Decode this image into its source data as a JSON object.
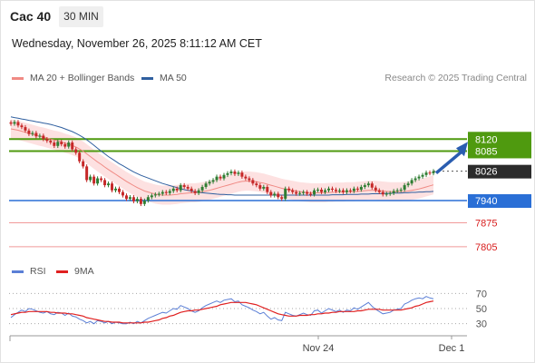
{
  "header": {
    "instrument": "Cac 40",
    "timeframe": "30 MIN"
  },
  "datetime": "Wednesday, November 26, 2025 8:11:12 AM CET",
  "legend": {
    "ma20": {
      "label": "MA 20 + Bollinger Bands",
      "color": "#f08a84"
    },
    "ma50": {
      "label": "MA 50",
      "color": "#2f5f9f"
    }
  },
  "credit": "Research © 2025 Trading Central",
  "rsi_legend": {
    "rsi": {
      "label": "RSI",
      "color": "#5b7fd6"
    },
    "ma9": {
      "label": "9MA",
      "color": "#e02020"
    }
  },
  "chart_data": [
    {
      "type": "candlestick",
      "title": "Cac 40",
      "ylim": [
        7770,
        8235
      ],
      "x_ticks": [
        "Nov 24",
        "Dec 1"
      ],
      "levels": [
        {
          "label": "8120",
          "value": 8120,
          "style": "resistance"
        },
        {
          "label": "8085",
          "value": 8085,
          "style": "resistance"
        },
        {
          "label": "8026",
          "value": 8026,
          "style": "last-price"
        },
        {
          "label": "7940",
          "value": 7940,
          "style": "pivot"
        },
        {
          "label": "7875",
          "value": 7875,
          "style": "support"
        },
        {
          "label": "7805",
          "value": 7805,
          "style": "support"
        }
      ],
      "closes": [
        8165,
        8170,
        8160,
        8155,
        8145,
        8135,
        8138,
        8128,
        8130,
        8120,
        8115,
        8110,
        8100,
        8112,
        8105,
        8098,
        8110,
        8090,
        8080,
        8055,
        8040,
        8000,
        8010,
        7990,
        8005,
        8000,
        7985,
        7990,
        7970,
        7975,
        7965,
        7955,
        7945,
        7950,
        7938,
        7945,
        7930,
        7940,
        7950,
        7955,
        7958,
        7960,
        7965,
        7962,
        7968,
        7975,
        7970,
        7985,
        7980,
        7975,
        7968,
        7962,
        7970,
        7980,
        7990,
        7995,
        8000,
        8010,
        8005,
        8015,
        8020,
        8025,
        8018,
        8022,
        8010,
        8005,
        8000,
        7990,
        7985,
        7975,
        7980,
        7965,
        7955,
        7960,
        7950,
        7945,
        7975,
        7970,
        7965,
        7960,
        7962,
        7965,
        7960,
        7958,
        7970,
        7972,
        7965,
        7970,
        7975,
        7972,
        7968,
        7970,
        7965,
        7970,
        7968,
        7975,
        7972,
        7980,
        7985,
        7990,
        7978,
        7970,
        7965,
        7958,
        7960,
        7962,
        7968,
        7970,
        7972,
        7985,
        7990,
        8000,
        8005,
        8010,
        8015,
        8022,
        8020,
        8026
      ],
      "ma20": [
        8150,
        8148,
        8146,
        8143,
        8140,
        8137,
        8134,
        8131,
        8128,
        8126,
        8123,
        8120,
        8117,
        8115,
        8112,
        8108,
        8105,
        8101,
        8097,
        8091,
        8085,
        8077,
        8069,
        8061,
        8053,
        8046,
        8038,
        8031,
        8024,
        8017,
        8010,
        8003,
        7996,
        7990,
        7984,
        7978,
        7973,
        7968,
        7965,
        7962,
        7959,
        7957,
        7956,
        7956,
        7956,
        7957,
        7958,
        7960,
        7961,
        7962,
        7963,
        7963,
        7964,
        7966,
        7968,
        7970,
        7973,
        7976,
        7979,
        7982,
        7985,
        7988,
        7991,
        7994,
        7996,
        7997,
        7997,
        7996,
        7995,
        7993,
        7991,
        7988,
        7985,
        7982,
        7979,
        7976,
        7974,
        7972,
        7970,
        7968,
        7966,
        7965,
        7964,
        7963,
        7963,
        7963,
        7963,
        7963,
        7964,
        7964,
        7965,
        7965,
        7965,
        7966,
        7966,
        7966,
        7967,
        7968,
        7969,
        7970,
        7970,
        7970,
        7969,
        7968,
        7967,
        7966,
        7966,
        7966,
        7966,
        7967,
        7968,
        7970,
        7972,
        7974,
        7977,
        7980,
        7983,
        7986
      ],
      "ma50": [
        8185,
        8183,
        8181,
        8179,
        8177,
        8175,
        8173,
        8171,
        8169,
        8167,
        8165,
        8163,
        8160,
        8157,
        8154,
        8150,
        8146,
        8142,
        8137,
        8131,
        8125,
        8118,
        8110,
        8102,
        8093,
        8085,
        8077,
        8069,
        8062,
        8055,
        8048,
        8042,
        8036,
        8030,
        8024,
        8019,
        8014,
        8010,
        8006,
        8002,
        7998,
        7994,
        7990,
        7987,
        7984,
        7981,
        7978,
        7975,
        7972,
        7970,
        7968,
        7966,
        7964,
        7963,
        7962,
        7961,
        7960,
        7959,
        7958,
        7958,
        7957,
        7957,
        7956,
        7956,
        7956,
        7956,
        7956,
        7956,
        7956,
        7956,
        7956,
        7956,
        7956,
        7956,
        7956,
        7956,
        7956,
        7956,
        7956,
        7956,
        7956,
        7956,
        7956,
        7956,
        7956,
        7956,
        7956,
        7956,
        7956,
        7957,
        7957,
        7957,
        7957,
        7958,
        7958,
        7958,
        7958,
        7959,
        7959,
        7959,
        7960,
        7960,
        7960,
        7961,
        7961,
        7961,
        7962,
        7962,
        7962,
        7963,
        7963,
        7964,
        7964,
        7965,
        7965,
        7966,
        7966,
        7967
      ],
      "projection": {
        "from": 8026,
        "to": 8120
      }
    },
    {
      "type": "line",
      "title": "RSI",
      "ylim": [
        20,
        80
      ],
      "y_ticks": [
        70,
        50,
        30
      ],
      "series": [
        {
          "name": "RSI",
          "values": [
            38,
            42,
            45,
            48,
            46,
            50,
            49,
            47,
            45,
            44,
            46,
            43,
            42,
            45,
            44,
            41,
            44,
            40,
            39,
            36,
            34,
            31,
            33,
            30,
            34,
            33,
            31,
            33,
            30,
            32,
            31,
            30,
            30,
            32,
            30,
            33,
            31,
            34,
            37,
            39,
            41,
            43,
            45,
            44,
            47,
            50,
            49,
            54,
            52,
            50,
            47,
            45,
            47,
            51,
            54,
            56,
            58,
            60,
            58,
            61,
            62,
            63,
            59,
            60,
            55,
            53,
            51,
            48,
            46,
            43,
            45,
            40,
            36,
            38,
            35,
            34,
            45,
            43,
            41,
            40,
            42,
            44,
            42,
            41,
            47,
            48,
            44,
            47,
            50,
            48,
            46,
            48,
            45,
            48,
            47,
            51,
            49,
            52,
            55,
            58,
            53,
            49,
            46,
            43,
            44,
            45,
            48,
            49,
            50,
            56,
            58,
            61,
            63,
            64,
            63,
            66,
            64,
            63
          ]
        },
        {
          "name": "9MA",
          "values": [
            42,
            43,
            44,
            45,
            45,
            46,
            46,
            46,
            46,
            46,
            46,
            45,
            45,
            44,
            44,
            44,
            43,
            43,
            42,
            41,
            40,
            38,
            37,
            36,
            35,
            34,
            33,
            33,
            32,
            32,
            32,
            31,
            31,
            31,
            31,
            31,
            31,
            32,
            32,
            33,
            34,
            35,
            37,
            38,
            40,
            41,
            43,
            45,
            46,
            47,
            47,
            48,
            48,
            49,
            50,
            51,
            52,
            53,
            55,
            56,
            57,
            58,
            58,
            58,
            58,
            58,
            57,
            56,
            55,
            53,
            51,
            49,
            47,
            45,
            43,
            42,
            41,
            40,
            40,
            40,
            41,
            41,
            41,
            42,
            42,
            43,
            43,
            44,
            44,
            45,
            45,
            46,
            46,
            46,
            46,
            46,
            47,
            47,
            48,
            49,
            49,
            49,
            49,
            48,
            48,
            48,
            48,
            48,
            48,
            49,
            50,
            51,
            53,
            54,
            56,
            58,
            59,
            60
          ]
        }
      ]
    }
  ]
}
